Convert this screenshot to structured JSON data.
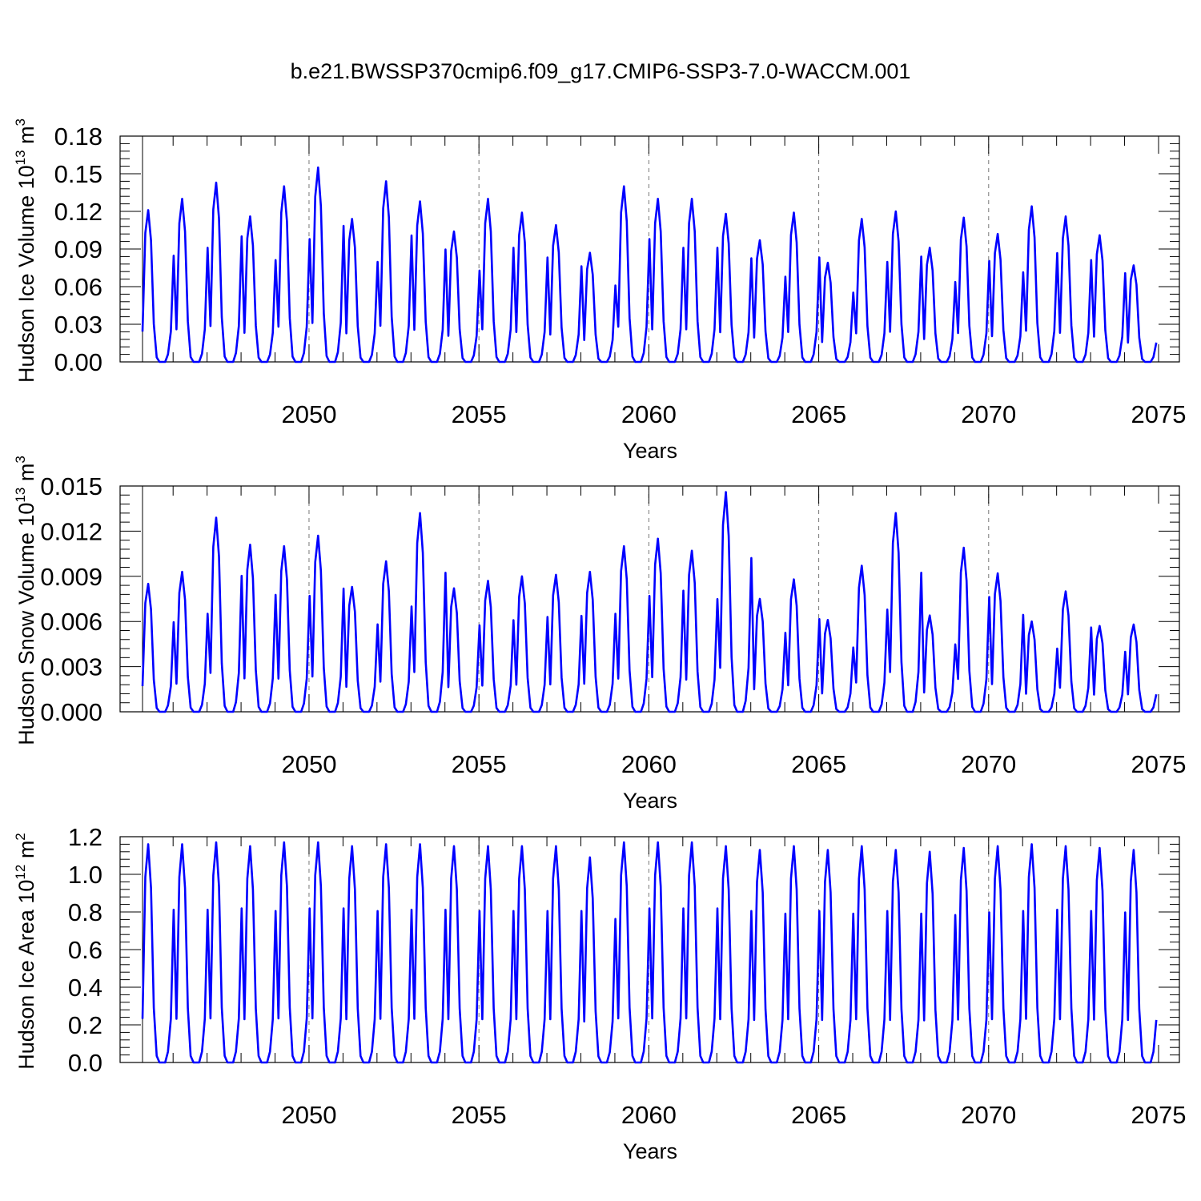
{
  "title": "b.e21.BWSSP370cmip6.f09_g17.CMIP6-SSP3-7.0-WACCM.001",
  "colors": {
    "series": "#0000ff",
    "axis": "#000000",
    "grid": "#777777"
  },
  "chart_data": [
    {
      "type": "line",
      "id": "ice-volume",
      "ylabel": "Hudson Ice Volume 10",
      "ylabel_exp": "13",
      "ylabel_unit": " m",
      "ylabel_unit_exp": "3",
      "xlabel": "Years",
      "xlim": [
        2045.1,
        2075
      ],
      "ylim": [
        0,
        0.18
      ],
      "yticks": [
        0,
        0.03,
        0.06,
        0.09,
        0.12,
        0.15,
        0.18
      ],
      "ytick_labels": [
        "0.00",
        "0.03",
        "0.06",
        "0.09",
        "0.12",
        "0.15",
        "0.18"
      ],
      "xticks": [
        2050,
        2055,
        2060,
        2065,
        2070,
        2075
      ],
      "xtick_labels": [
        "2050",
        "2055",
        "2060",
        "2065",
        "2070",
        "2075"
      ],
      "grid_x": [
        2050,
        2055,
        2060,
        2065,
        2070
      ],
      "series": [
        {
          "name": "Hudson Ice Volume",
          "start_year": 2045.1,
          "annual_peaks": [
            0.121,
            0.13,
            0.143,
            0.116,
            0.14,
            0.155,
            0.114,
            0.144,
            0.128,
            0.104,
            0.13,
            0.119,
            0.109,
            0.087,
            0.14,
            0.13,
            0.13,
            0.118,
            0.097,
            0.119,
            0.079,
            0.114,
            0.12,
            0.091,
            0.115,
            0.102,
            0.124,
            0.116,
            0.101,
            0.077
          ],
          "annual_minimum": 0.0
        }
      ]
    },
    {
      "type": "line",
      "id": "snow-volume",
      "ylabel": "Hudson Snow Volume 10",
      "ylabel_exp": "13",
      "ylabel_unit": " m",
      "ylabel_unit_exp": "3",
      "xlabel": "Years",
      "xlim": [
        2045.1,
        2075
      ],
      "ylim": [
        0,
        0.015
      ],
      "yticks": [
        0,
        0.003,
        0.006,
        0.009,
        0.012,
        0.015
      ],
      "ytick_labels": [
        "0.000",
        "0.003",
        "0.006",
        "0.009",
        "0.012",
        "0.015"
      ],
      "xticks": [
        2050,
        2055,
        2060,
        2065,
        2070,
        2075
      ],
      "xtick_labels": [
        "2050",
        "2055",
        "2060",
        "2065",
        "2070",
        "2075"
      ],
      "grid_x": [
        2050,
        2055,
        2060,
        2065,
        2070
      ],
      "series": [
        {
          "name": "Hudson Snow Volume",
          "start_year": 2045.1,
          "annual_peaks": [
            0.0085,
            0.0093,
            0.0129,
            0.0111,
            0.011,
            0.0117,
            0.0083,
            0.01,
            0.0132,
            0.0082,
            0.0087,
            0.009,
            0.0091,
            0.0093,
            0.011,
            0.0115,
            0.0107,
            0.0146,
            0.0075,
            0.0088,
            0.0061,
            0.0097,
            0.0132,
            0.0064,
            0.0109,
            0.0092,
            0.006,
            0.008,
            0.0057,
            0.0058
          ],
          "annual_minimum": 0.0
        }
      ]
    },
    {
      "type": "line",
      "id": "ice-area",
      "ylabel": "Hudson Ice Area 10",
      "ylabel_exp": "12",
      "ylabel_unit": " m",
      "ylabel_unit_exp": "2",
      "xlabel": "Years",
      "xlim": [
        2045.1,
        2075
      ],
      "ylim": [
        0,
        1.2
      ],
      "yticks": [
        0,
        0.2,
        0.4,
        0.6,
        0.8,
        1.0,
        1.2
      ],
      "ytick_labels": [
        "0.0",
        "0.2",
        "0.4",
        "0.6",
        "0.8",
        "1.0",
        "1.2"
      ],
      "xticks": [
        2050,
        2055,
        2060,
        2065,
        2070,
        2075
      ],
      "xtick_labels": [
        "2050",
        "2055",
        "2060",
        "2065",
        "2070",
        "2075"
      ],
      "grid_x": [
        2050,
        2055,
        2060,
        2065,
        2070
      ],
      "series": [
        {
          "name": "Hudson Ice Area",
          "start_year": 2045.1,
          "annual_peaks": [
            1.16,
            1.16,
            1.17,
            1.15,
            1.17,
            1.17,
            1.15,
            1.16,
            1.16,
            1.15,
            1.15,
            1.15,
            1.15,
            1.09,
            1.17,
            1.17,
            1.17,
            1.15,
            1.13,
            1.15,
            1.13,
            1.15,
            1.13,
            1.12,
            1.14,
            1.15,
            1.16,
            1.15,
            1.14,
            1.13
          ],
          "annual_minimum": 0.0
        }
      ]
    }
  ]
}
